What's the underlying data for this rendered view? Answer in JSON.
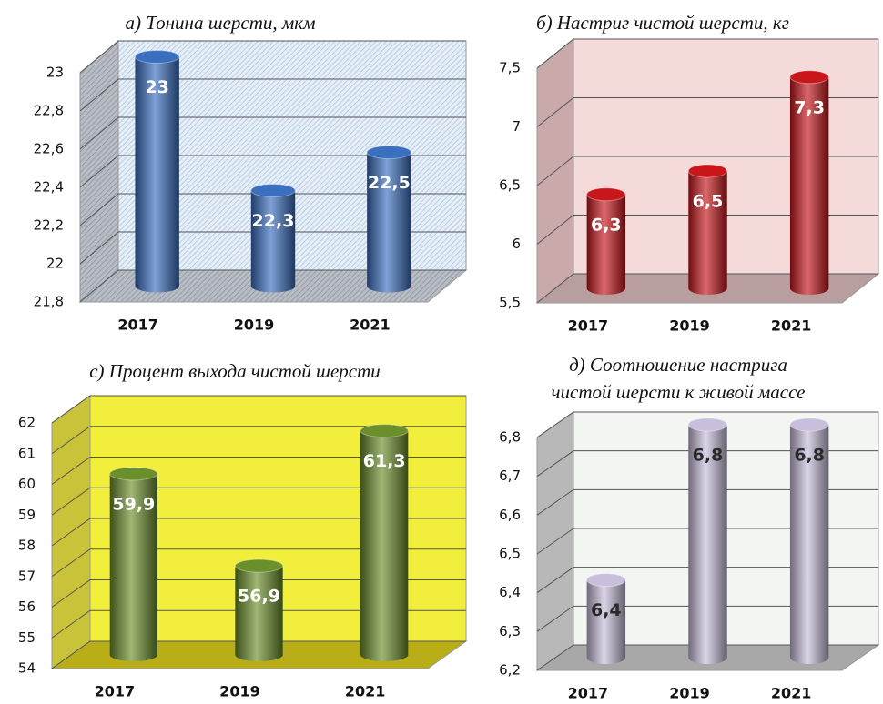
{
  "chart_data": [
    {
      "type": "bar",
      "title": "а) Тонина шерсти, мкм",
      "categories": [
        "2017",
        "2019",
        "2021"
      ],
      "values": [
        23,
        22.3,
        22.5
      ],
      "value_labels": [
        "23",
        "22,3",
        "22,5"
      ],
      "color": "#3a6fc0",
      "ylim": [
        21.8,
        23
      ],
      "yticks": [
        {
          "value": 21.8,
          "label": "21,8"
        },
        22,
        {
          "value": 22.2,
          "label": "22,2"
        },
        {
          "value": 22.4,
          "label": "22,4"
        },
        {
          "value": 22.6,
          "label": "22,6"
        },
        {
          "value": 22.8,
          "label": "22,8"
        },
        23
      ],
      "grid": true
    },
    {
      "type": "bar",
      "title": "б) Настриг чистой шерсти, кг",
      "categories": [
        "2017",
        "2019",
        "2021"
      ],
      "values": [
        6.3,
        6.5,
        7.3
      ],
      "value_labels": [
        "6,3",
        "6,5",
        "7,3"
      ],
      "color": "#c8161b",
      "ylim": [
        5.5,
        7.5
      ],
      "yticks": [
        {
          "value": 5.5,
          "label": "5,5"
        },
        6,
        {
          "value": 6.5,
          "label": "6,5"
        },
        7,
        {
          "value": 7.5,
          "label": "7,5"
        }
      ],
      "grid": true
    },
    {
      "type": "bar",
      "title": "с) Процент выхода чистой шерсти",
      "categories": [
        "2017",
        "2019",
        "2021"
      ],
      "values": [
        59.9,
        56.9,
        61.3
      ],
      "value_labels": [
        "59,9",
        "56,9",
        "61,3"
      ],
      "color": "#6b8f2b",
      "ylim": [
        54,
        62
      ],
      "yticks": [
        54,
        55,
        56,
        57,
        58,
        59,
        60,
        61,
        62
      ],
      "grid": true
    },
    {
      "type": "bar",
      "title": [
        "д) Соотношение настрига",
        "чистой шерсти к живой массе"
      ],
      "categories": [
        "2017",
        "2019",
        "2021"
      ],
      "values": [
        6.4,
        6.8,
        6.8
      ],
      "value_labels": [
        "6,4",
        "6,8",
        "6,8"
      ],
      "color": "#c9bfdc",
      "ylim": [
        6.2,
        6.8
      ],
      "yticks": [
        {
          "value": 6.2,
          "label": "6,2"
        },
        {
          "value": 6.3,
          "label": "6,3"
        },
        {
          "value": 6.4,
          "label": "6,4"
        },
        {
          "value": 6.5,
          "label": "6,5"
        },
        {
          "value": 6.6,
          "label": "6,6"
        },
        {
          "value": 6.7,
          "label": "6,7"
        },
        {
          "value": 6.8,
          "label": "6,8"
        }
      ],
      "grid": true
    }
  ]
}
